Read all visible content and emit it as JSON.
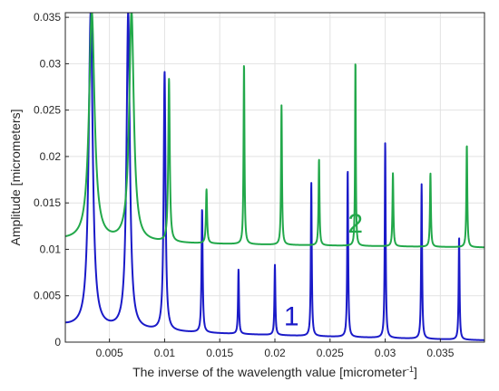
{
  "chart_data": {
    "type": "line",
    "xlabel": "The inverse of the wavelength value  [micrometer",
    "xlabel_sup": "-1",
    "xlabel_suffix": "]",
    "ylabel": "Amplitude [micrometers]",
    "xlim": [
      0.001,
      0.039
    ],
    "ylim": [
      0,
      0.0355
    ],
    "grid": true,
    "x_ticks": [
      0.005,
      0.01,
      0.015,
      0.02,
      0.025,
      0.03,
      0.035
    ],
    "x_tick_labels": [
      "0.005",
      "0.01",
      "0.015",
      "0.02",
      "0.025",
      "0.03",
      "0.035"
    ],
    "y_ticks": [
      0,
      0.005,
      0.01,
      0.015,
      0.02,
      0.025,
      0.03,
      0.035
    ],
    "y_tick_labels": [
      "0",
      "0.005",
      "0.01",
      "0.015",
      "0.02",
      "0.025",
      "0.03",
      "0.035"
    ],
    "series": [
      {
        "label": "1",
        "color": "#1a1ac8",
        "baseline_start": 0.0018,
        "baseline_end": 0.0002,
        "peaks": [
          {
            "x": 0.0033,
            "y": 0.0355,
            "w": 0.00022
          },
          {
            "x": 0.0067,
            "y": 0.0355,
            "w": 0.00018
          },
          {
            "x": 0.01,
            "y": 0.029,
            "w": 0.0001
          },
          {
            "x": 0.0134,
            "y": 0.0143,
            "w": 6e-05
          },
          {
            "x": 0.0167,
            "y": 0.0078,
            "w": 5e-05
          },
          {
            "x": 0.02,
            "y": 0.0083,
            "w": 5e-05
          },
          {
            "x": 0.0233,
            "y": 0.0172,
            "w": 5e-05
          },
          {
            "x": 0.0266,
            "y": 0.0186,
            "w": 5e-05
          },
          {
            "x": 0.03,
            "y": 0.0215,
            "w": 5e-05
          },
          {
            "x": 0.0333,
            "y": 0.017,
            "w": 5e-05
          },
          {
            "x": 0.0367,
            "y": 0.0113,
            "w": 5e-05
          }
        ]
      },
      {
        "label": "2",
        "color": "#22a84a",
        "baseline_start": 0.011,
        "baseline_end": 0.0102,
        "peaks": [
          {
            "x": 0.0034,
            "y": 0.0355,
            "w": 0.0003
          },
          {
            "x": 0.007,
            "y": 0.0355,
            "w": 0.00025
          },
          {
            "x": 0.0104,
            "y": 0.0282,
            "w": 8e-05
          },
          {
            "x": 0.0138,
            "y": 0.0164,
            "w": 6e-05
          },
          {
            "x": 0.0172,
            "y": 0.03,
            "w": 5e-05
          },
          {
            "x": 0.0206,
            "y": 0.0255,
            "w": 5e-05
          },
          {
            "x": 0.024,
            "y": 0.0197,
            "w": 5e-05
          },
          {
            "x": 0.0273,
            "y": 0.0305,
            "w": 4e-05
          },
          {
            "x": 0.0307,
            "y": 0.0182,
            "w": 5e-05
          },
          {
            "x": 0.0341,
            "y": 0.0182,
            "w": 5e-05
          },
          {
            "x": 0.0374,
            "y": 0.0213,
            "w": 5e-05
          }
        ]
      }
    ]
  }
}
